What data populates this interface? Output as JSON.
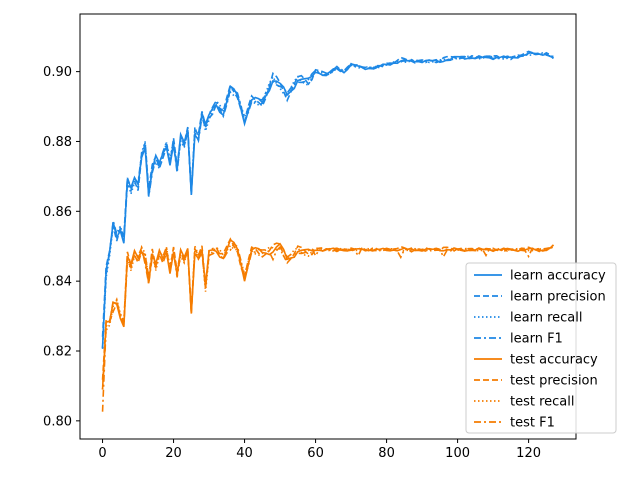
{
  "chart_data": {
    "type": "line",
    "title": "",
    "xlabel": "",
    "ylabel": "",
    "xlim": [
      -6.35,
      133.35
    ],
    "ylim": [
      0.7948,
      0.9165
    ],
    "x_ticks": [
      0,
      20,
      40,
      60,
      80,
      100,
      120
    ],
    "y_ticks": [
      0.8,
      0.82,
      0.84,
      0.86,
      0.88,
      0.9
    ],
    "x_tick_labels": [
      "0",
      "20",
      "40",
      "60",
      "80",
      "100",
      "120"
    ],
    "y_tick_labels": [
      "0.80",
      "0.82",
      "0.84",
      "0.86",
      "0.88",
      "0.90"
    ],
    "grid": false,
    "legend_position": "lower-right",
    "colors": {
      "learn": "#1e88e5",
      "test": "#f57c00"
    },
    "keypoints": {
      "learn": {
        "x": [
          0,
          1,
          2,
          3,
          4,
          5,
          6,
          7,
          8,
          9,
          10,
          11,
          12,
          13,
          14,
          15,
          16,
          17,
          18,
          19,
          20,
          21,
          22,
          23,
          24,
          25,
          26,
          27,
          28,
          29,
          30,
          32,
          34,
          36,
          38,
          40,
          42,
          45,
          48,
          50,
          52,
          55,
          58,
          60,
          63,
          66,
          68,
          70,
          73,
          76,
          80,
          84,
          90,
          95,
          100,
          105,
          110,
          115,
          120,
          125,
          127
        ],
        "y": [
          0.821,
          0.842,
          0.848,
          0.856,
          0.853,
          0.855,
          0.852,
          0.869,
          0.866,
          0.869,
          0.867,
          0.876,
          0.879,
          0.865,
          0.872,
          0.875,
          0.873,
          0.876,
          0.879,
          0.874,
          0.88,
          0.872,
          0.881,
          0.879,
          0.883,
          0.865,
          0.883,
          0.881,
          0.888,
          0.884,
          0.887,
          0.891,
          0.888,
          0.895,
          0.893,
          0.886,
          0.892,
          0.891,
          0.898,
          0.896,
          0.893,
          0.898,
          0.897,
          0.9,
          0.899,
          0.901,
          0.9,
          0.902,
          0.901,
          0.901,
          0.902,
          0.903,
          0.903,
          0.903,
          0.904,
          0.904,
          0.904,
          0.904,
          0.905,
          0.905,
          0.904
        ],
        "metrics": [
          {
            "name": "learn accuracy",
            "style": "solid",
            "offsets": [
              0,
              0.4,
              -0.5,
              0.6,
              0,
              0.5,
              -0.6,
              0.3,
              0,
              -0.5,
              0.7,
              -0.4
            ]
          },
          {
            "name": "learn precision",
            "style": "dashed",
            "offsets": [
              2.1,
              1.8,
              1.2,
              0.8,
              -0.9,
              0.4,
              0.3,
              -0.6,
              0.7,
              0.2,
              -0.3,
              0.5
            ]
          },
          {
            "name": "learn recall",
            "style": "dotted",
            "offsets": [
              0.1,
              -0.2,
              0.3,
              -0.1,
              0.2,
              -0.3,
              0.1,
              0.2,
              -0.2,
              0.1,
              -0.1,
              0.3
            ]
          },
          {
            "name": "learn F1",
            "style": "dashdot",
            "offsets": [
              0.5,
              0.2,
              -0.3,
              0.4,
              -0.2,
              0.1,
              0.5,
              -0.4,
              0.2,
              -0.1,
              0.3,
              -0.2
            ]
          }
        ]
      },
      "test": {
        "x": [
          0,
          1,
          2,
          3,
          4,
          5,
          6,
          7,
          8,
          9,
          10,
          11,
          12,
          13,
          14,
          15,
          16,
          17,
          18,
          19,
          20,
          21,
          22,
          23,
          24,
          25,
          26,
          27,
          28,
          29,
          30,
          32,
          34,
          36,
          38,
          40,
          42,
          45,
          48,
          50,
          52,
          55,
          58,
          60,
          63,
          66,
          68,
          70,
          73,
          76,
          80,
          84,
          90,
          95,
          100,
          105,
          110,
          115,
          120,
          125,
          127
        ],
        "y": [
          0.809,
          0.827,
          0.828,
          0.833,
          0.834,
          0.83,
          0.828,
          0.847,
          0.844,
          0.848,
          0.846,
          0.849,
          0.847,
          0.84,
          0.848,
          0.844,
          0.848,
          0.846,
          0.849,
          0.843,
          0.849,
          0.842,
          0.848,
          0.846,
          0.849,
          0.831,
          0.849,
          0.847,
          0.849,
          0.838,
          0.848,
          0.849,
          0.847,
          0.851,
          0.849,
          0.841,
          0.849,
          0.848,
          0.849,
          0.85,
          0.846,
          0.849,
          0.848,
          0.849,
          0.849,
          0.849,
          0.849,
          0.849,
          0.849,
          0.849,
          0.849,
          0.849,
          0.849,
          0.849,
          0.849,
          0.849,
          0.849,
          0.849,
          0.849,
          0.849,
          0.85
        ],
        "metrics": [
          {
            "name": "test accuracy",
            "style": "solid",
            "offsets": [
              0,
              0.5,
              -0.4,
              0.6,
              -0.2,
              0.4,
              -0.5,
              0.3,
              0.1,
              -0.4,
              0.6,
              -0.3
            ]
          },
          {
            "name": "test precision",
            "style": "dashed",
            "offsets": [
              1.8,
              1.2,
              0.8,
              -0.9,
              0.5,
              0.3,
              -0.6,
              0.7,
              0.2,
              -0.3,
              0.5,
              0.2
            ]
          },
          {
            "name": "test recall",
            "style": "dotted",
            "offsets": [
              0.2,
              -0.2,
              0.3,
              -0.1,
              0.2,
              -0.3,
              0.1,
              0.2,
              -0.2,
              0.1,
              -0.1,
              0.2
            ]
          },
          {
            "name": "test F1",
            "style": "dashdot",
            "offsets": [
              -5.5,
              0.3,
              -0.3,
              0.5,
              -0.2,
              0.2,
              0.4,
              -0.4,
              0.3,
              -0.1,
              0.3,
              -0.2
            ]
          }
        ]
      }
    },
    "legend": [
      {
        "label": "learn accuracy",
        "group": "learn",
        "style": "solid"
      },
      {
        "label": "learn precision",
        "group": "learn",
        "style": "dashed"
      },
      {
        "label": "learn recall",
        "group": "learn",
        "style": "dotted"
      },
      {
        "label": "learn F1",
        "group": "learn",
        "style": "dashdot"
      },
      {
        "label": "test accuracy",
        "group": "test",
        "style": "solid"
      },
      {
        "label": "test precision",
        "group": "test",
        "style": "dashed"
      },
      {
        "label": "test recall",
        "group": "test",
        "style": "dotted"
      },
      {
        "label": "test F1",
        "group": "test",
        "style": "dashdot"
      }
    ]
  }
}
